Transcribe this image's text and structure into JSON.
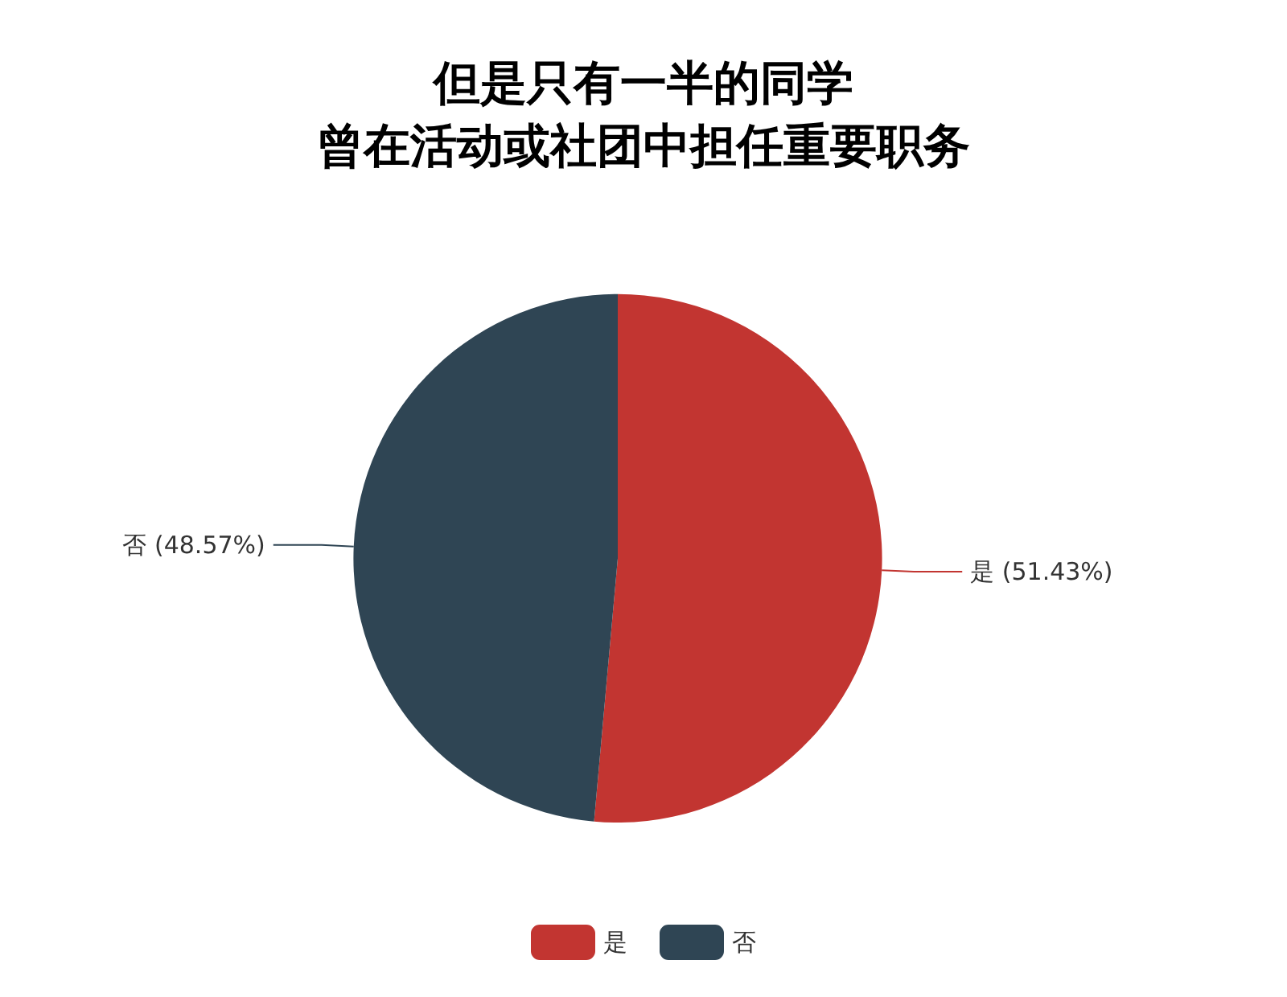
{
  "chart_data": {
    "type": "pie",
    "title": "但是只有一半的同学",
    "subtitle": "曾在活动或社团中担任重要职务",
    "categories": [
      "是",
      "否"
    ],
    "values": [
      51.43,
      48.57
    ],
    "value_labels": [
      "(51.43%)",
      "(48.57%)"
    ],
    "colors": [
      "#c23531",
      "#2f4554"
    ],
    "legend": "bottom"
  }
}
